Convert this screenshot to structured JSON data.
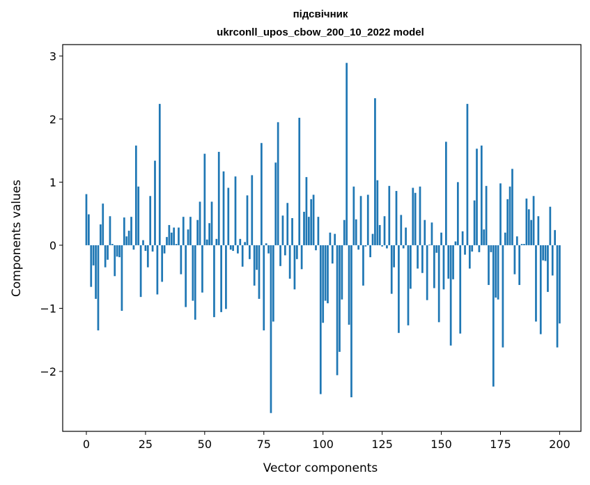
{
  "chart_data": {
    "type": "bar",
    "title": [
      "підсвічник",
      "ukrconll_upos_cbow_200_10_2022 model"
    ],
    "xlabel": "Vector components",
    "ylabel": "Components values",
    "xlim": [
      -10,
      209
    ],
    "ylim": [
      -2.95,
      3.18
    ],
    "xticks": [
      0,
      25,
      50,
      75,
      100,
      125,
      150,
      175,
      200
    ],
    "xtick_labels": [
      "0",
      "25",
      "50",
      "75",
      "100",
      "125",
      "150",
      "175",
      "200"
    ],
    "yticks": [
      -2,
      -1,
      0,
      1,
      2,
      3
    ],
    "ytick_labels": [
      "−2",
      "−1",
      "0",
      "1",
      "2",
      "3"
    ],
    "grid": false,
    "bar_color": "#1f77b4",
    "values": [
      0.81,
      0.49,
      -0.66,
      -0.32,
      -0.85,
      -1.35,
      0.33,
      0.66,
      -0.35,
      -0.23,
      0.46,
      0.02,
      -0.49,
      -0.18,
      -0.19,
      -1.04,
      0.44,
      0.14,
      0.23,
      0.45,
      -0.07,
      1.58,
      0.93,
      -0.82,
      0.08,
      -0.09,
      -0.35,
      0.78,
      -0.1,
      1.34,
      -0.78,
      2.24,
      -0.58,
      -0.13,
      0.13,
      0.32,
      0.2,
      0.28,
      0.02,
      0.28,
      -0.46,
      0.45,
      -0.98,
      0.25,
      0.45,
      -0.88,
      -1.18,
      0.4,
      0.69,
      -0.75,
      1.45,
      0.09,
      0.35,
      0.69,
      -1.14,
      0.1,
      1.48,
      -1.06,
      1.17,
      -1.01,
      0.91,
      -0.07,
      -0.09,
      1.09,
      -0.13,
      0.1,
      -0.34,
      0.05,
      0.79,
      -0.22,
      1.11,
      -0.64,
      -0.39,
      -0.85,
      1.62,
      -1.35,
      0.03,
      -0.13,
      -2.66,
      -1.21,
      1.31,
      1.95,
      -0.33,
      0.47,
      -0.16,
      0.67,
      -0.53,
      0.43,
      -0.7,
      -0.22,
      2.02,
      -0.38,
      0.53,
      1.08,
      0.45,
      0.73,
      0.8,
      -0.08,
      0.45,
      -2.36,
      -1.23,
      -0.88,
      -0.92,
      0.2,
      -0.29,
      0.18,
      -2.06,
      -1.69,
      -0.86,
      0.4,
      2.89,
      -1.26,
      -2.41,
      0.93,
      0.41,
      -0.07,
      0.78,
      -0.64,
      -0.02,
      0.8,
      -0.19,
      0.18,
      2.33,
      1.03,
      0.32,
      -0.02,
      0.46,
      -0.05,
      0.94,
      -0.77,
      -0.35,
      0.86,
      -1.39,
      0.48,
      -0.05,
      0.28,
      -1.27,
      -0.69,
      0.91,
      0.83,
      -0.37,
      0.93,
      -0.44,
      0.4,
      -0.87,
      0.01,
      0.36,
      -0.68,
      -0.12,
      -1.22,
      0.2,
      -0.7,
      1.64,
      -0.53,
      -1.59,
      -0.54,
      0.06,
      1.0,
      -1.4,
      0.22,
      -0.15,
      2.24,
      -0.37,
      -0.1,
      0.71,
      1.53,
      -0.11,
      1.58,
      0.25,
      0.94,
      -0.63,
      -0.11,
      -2.24,
      -0.83,
      -0.86,
      0.98,
      -1.62,
      0.2,
      0.73,
      0.93,
      1.21,
      -0.46,
      0.14,
      -0.63,
      0.02,
      0.02,
      0.74,
      0.57,
      0.4,
      0.78,
      -1.21,
      0.46,
      -1.41,
      -0.24,
      -0.25,
      -0.74,
      0.61,
      -0.48,
      0.24,
      -1.62,
      -1.24
    ]
  }
}
